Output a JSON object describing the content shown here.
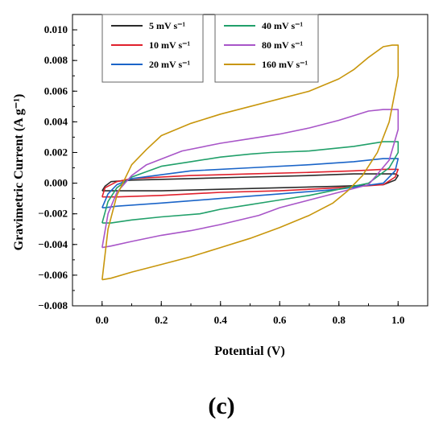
{
  "chart_data": {
    "type": "line",
    "xlabel": "Potential (V)",
    "ylabel": "Gravimetric Current (A g⁻¹)",
    "xlim": [
      -0.1,
      1.1
    ],
    "ylim": [
      -0.008,
      0.011
    ],
    "xticks": [
      0.0,
      0.2,
      0.4,
      0.6,
      0.8,
      1.0
    ],
    "xtick_labels": [
      "0.0",
      "0.2",
      "0.4",
      "0.6",
      "0.8",
      "1.0"
    ],
    "yticks": [
      -0.008,
      -0.006,
      -0.004,
      -0.002,
      0.0,
      0.002,
      0.004,
      0.006,
      0.008,
      0.01
    ],
    "ytick_labels": [
      "−0.008",
      "−0.006",
      "−0.004",
      "−0.002",
      "0.000",
      "0.002",
      "0.004",
      "0.006",
      "0.008",
      "0.010"
    ],
    "grid": false,
    "legend_position": "top",
    "series": [
      {
        "name": "5 mV s⁻¹",
        "color": "#2b2b2b",
        "x": [
          0.0,
          0.01,
          0.03,
          0.1,
          0.3,
          0.5,
          0.7,
          0.85,
          0.95,
          0.99,
          1.0,
          0.99,
          0.95,
          0.8,
          0.6,
          0.4,
          0.2,
          0.05,
          0.01,
          0.0
        ],
        "y": [
          -0.0005,
          -0.0002,
          0.0001,
          0.0002,
          0.0003,
          0.0004,
          0.0005,
          0.0006,
          0.0006,
          0.0006,
          0.0005,
          0.0002,
          -0.0001,
          -0.0002,
          -0.0003,
          -0.0004,
          -0.0005,
          -0.0005,
          -0.0005,
          -0.0005
        ]
      },
      {
        "name": "10 mV s⁻¹",
        "color": "#e0202c",
        "x": [
          0.0,
          0.01,
          0.05,
          0.1,
          0.3,
          0.5,
          0.7,
          0.85,
          0.95,
          0.99,
          1.0,
          0.99,
          0.95,
          0.8,
          0.6,
          0.4,
          0.2,
          0.05,
          0.01,
          0.0
        ],
        "y": [
          -0.0009,
          -0.0003,
          0.0001,
          0.0003,
          0.0005,
          0.0006,
          0.0007,
          0.0008,
          0.0009,
          0.0009,
          0.0009,
          0.0004,
          -0.0001,
          -0.0003,
          -0.0005,
          -0.0006,
          -0.0008,
          -0.0009,
          -0.0009,
          -0.0009
        ]
      },
      {
        "name": "20 mV s⁻¹",
        "color": "#1a64c8",
        "x": [
          0.0,
          0.02,
          0.05,
          0.1,
          0.3,
          0.5,
          0.7,
          0.85,
          0.95,
          0.99,
          1.0,
          0.99,
          0.95,
          0.8,
          0.6,
          0.4,
          0.2,
          0.05,
          0.01,
          0.0
        ],
        "y": [
          -0.0016,
          -0.0007,
          -0.0001,
          0.0003,
          0.0008,
          0.001,
          0.0012,
          0.0014,
          0.0016,
          0.0016,
          0.0016,
          0.0008,
          0.0,
          -0.0004,
          -0.0007,
          -0.001,
          -0.0013,
          -0.0015,
          -0.0016,
          -0.0016
        ]
      },
      {
        "name": "40 mV s⁻¹",
        "color": "#21a06a",
        "x": [
          0.0,
          0.02,
          0.05,
          0.1,
          0.2,
          0.3,
          0.4,
          0.5,
          0.57,
          0.7,
          0.85,
          0.95,
          1.0,
          1.0,
          0.97,
          0.9,
          0.8,
          0.7,
          0.6,
          0.5,
          0.4,
          0.33,
          0.2,
          0.1,
          0.03,
          0.0
        ],
        "y": [
          -0.0026,
          -0.0012,
          -0.0003,
          0.0004,
          0.0011,
          0.0014,
          0.0017,
          0.0019,
          0.002,
          0.0021,
          0.0024,
          0.0027,
          0.0027,
          0.002,
          0.001,
          0.0,
          -0.0004,
          -0.0008,
          -0.0011,
          -0.0014,
          -0.0017,
          -0.002,
          -0.0022,
          -0.0024,
          -0.0026,
          -0.0026
        ]
      },
      {
        "name": "80 mV s⁻¹",
        "color": "#a855c8",
        "x": [
          0.0,
          0.02,
          0.05,
          0.1,
          0.15,
          0.27,
          0.4,
          0.5,
          0.6,
          0.7,
          0.8,
          0.9,
          0.95,
          1.0,
          1.0,
          0.97,
          0.9,
          0.8,
          0.7,
          0.6,
          0.53,
          0.4,
          0.3,
          0.2,
          0.1,
          0.03,
          0.0
        ],
        "y": [
          -0.0042,
          -0.002,
          -0.0006,
          0.0005,
          0.0012,
          0.0021,
          0.0026,
          0.0029,
          0.0032,
          0.0036,
          0.0041,
          0.0047,
          0.0048,
          0.0048,
          0.0035,
          0.0015,
          -0.0001,
          -0.0006,
          -0.0011,
          -0.0016,
          -0.0021,
          -0.0027,
          -0.0031,
          -0.0034,
          -0.0038,
          -0.0041,
          -0.0042
        ]
      },
      {
        "name": "160 mV s⁻¹",
        "color": "#c8960c",
        "x": [
          0.0,
          0.02,
          0.05,
          0.1,
          0.15,
          0.2,
          0.3,
          0.4,
          0.5,
          0.6,
          0.7,
          0.8,
          0.85,
          0.9,
          0.95,
          0.98,
          1.0,
          1.0,
          0.97,
          0.93,
          0.88,
          0.83,
          0.78,
          0.7,
          0.6,
          0.5,
          0.4,
          0.3,
          0.2,
          0.1,
          0.03,
          0.0
        ],
        "y": [
          -0.0063,
          -0.003,
          -0.0008,
          0.0012,
          0.0022,
          0.0031,
          0.0039,
          0.0045,
          0.005,
          0.0055,
          0.006,
          0.0068,
          0.0074,
          0.0082,
          0.0089,
          0.009,
          0.009,
          0.007,
          0.004,
          0.002,
          0.0005,
          -0.0005,
          -0.0013,
          -0.0021,
          -0.0029,
          -0.0036,
          -0.0042,
          -0.0048,
          -0.0053,
          -0.0058,
          -0.0062,
          -0.0063
        ]
      }
    ]
  },
  "panel_label": "(c)"
}
